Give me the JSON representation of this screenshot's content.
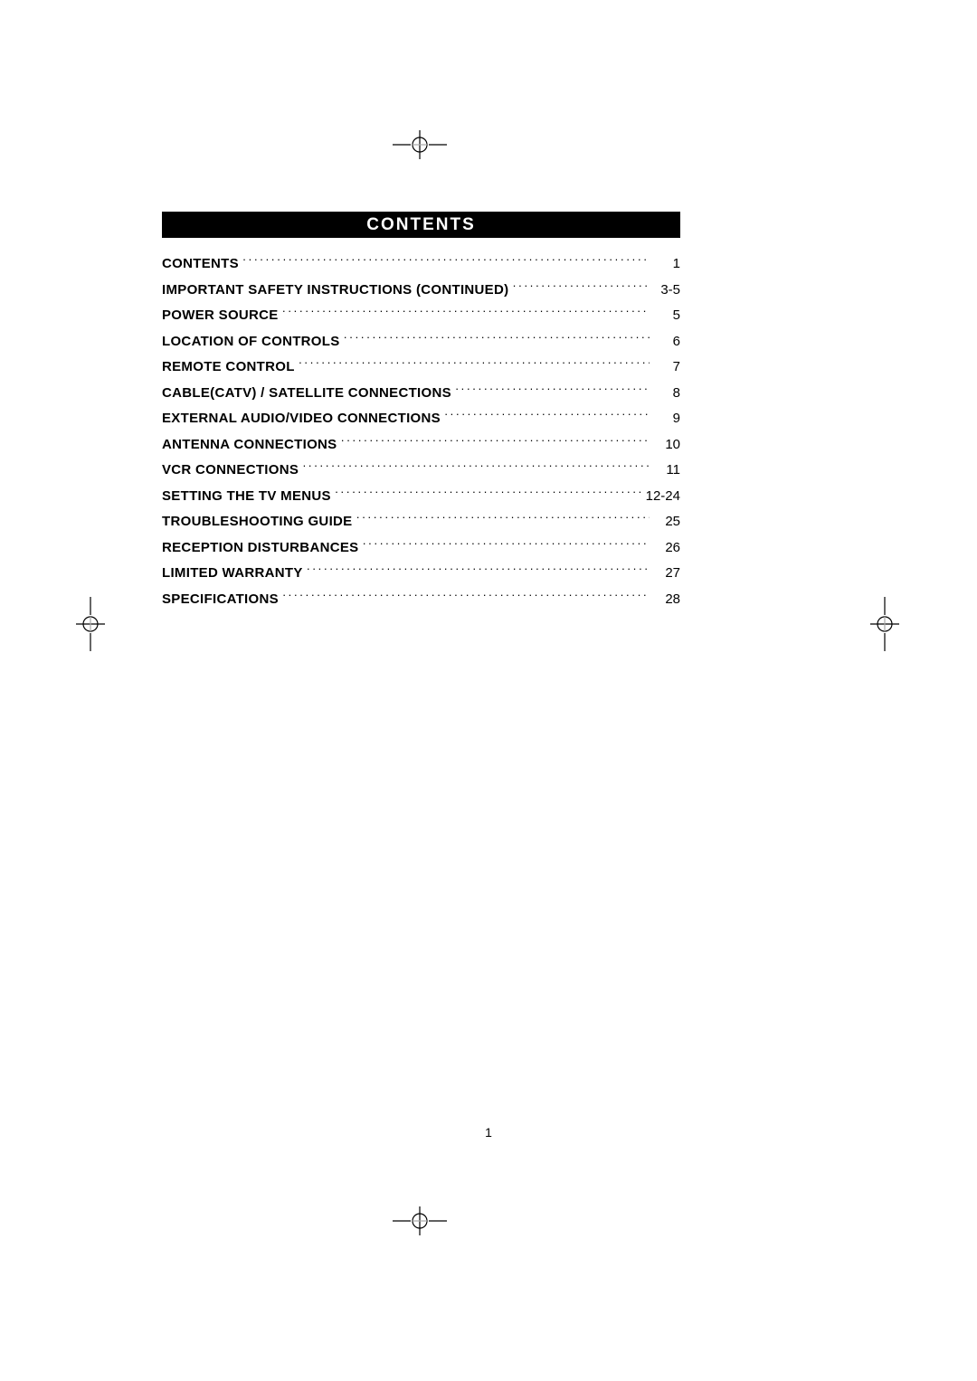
{
  "header": {
    "title": "CONTENTS",
    "bg_color": "#000000",
    "text_color": "#ffffff",
    "font_size": 19,
    "letter_spacing": 2
  },
  "toc": {
    "title_font_size": 15,
    "title_font_weight": 700,
    "page_font_size": 15,
    "row_height": 28.5,
    "leader_char": "·",
    "entries": [
      {
        "title": "CONTENTS",
        "page": "1"
      },
      {
        "title": "IMPORTANT SAFETY INSTRUCTIONS (CONTINUED)",
        "page": "3-5"
      },
      {
        "title": "POWER SOURCE",
        "page": "5"
      },
      {
        "title": "LOCATION OF CONTROLS",
        "page": "6"
      },
      {
        "title": "REMOTE CONTROL",
        "page": "7"
      },
      {
        "title": "CABLE(CATV) / SATELLITE CONNECTIONS",
        "page": "8"
      },
      {
        "title": "EXTERNAL AUDIO/VIDEO CONNECTIONS",
        "page": "9"
      },
      {
        "title": "ANTENNA CONNECTIONS",
        "page": "10"
      },
      {
        "title": "VCR CONNECTIONS",
        "page": "11"
      },
      {
        "title": "SETTING THE TV MENUS",
        "page": "12-24"
      },
      {
        "title": "TROUBLESHOOTING GUIDE",
        "page": "25"
      },
      {
        "title": "RECEPTION DISTURBANCES",
        "page": "26"
      },
      {
        "title": "LIMITED WARRANTY",
        "page": "27"
      },
      {
        "title": "SPECIFICATIONS",
        "page": "28"
      }
    ]
  },
  "page_number": "1",
  "page_number_font_size": 14,
  "background_color": "#ffffff",
  "reg_mark": {
    "stroke_black": "#000000",
    "stroke_gray": "#a8a8a8",
    "stroke_width": 1.2
  }
}
